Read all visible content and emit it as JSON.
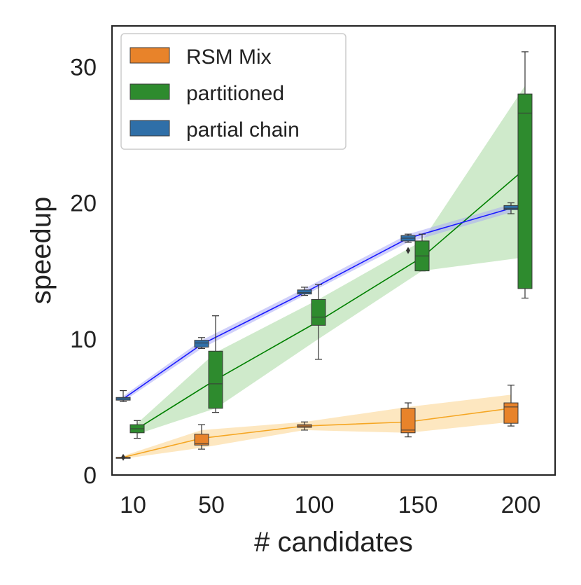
{
  "chart_data": {
    "type": "box",
    "title": "",
    "xlabel": "# candidates",
    "ylabel": "speedup",
    "categories": [
      "10",
      "50",
      "100",
      "150",
      "200"
    ],
    "ylim": [
      0,
      33
    ],
    "yticks": [
      0,
      10,
      20,
      30
    ],
    "legend": {
      "placement": "top-left"
    },
    "series": [
      {
        "name": "RSM Mix",
        "color": "#e8832a",
        "line_color": "#f5a623",
        "band_color": "#fbd38d",
        "box_order": 0,
        "means": [
          1.3,
          2.7,
          3.6,
          3.9,
          4.9
        ],
        "band_low": [
          1.2,
          2.0,
          3.3,
          3.1,
          3.9
        ],
        "band_high": [
          1.4,
          3.3,
          3.9,
          5.0,
          5.9
        ],
        "boxes": [
          {
            "whisker_low": 1.3,
            "q1": 1.3,
            "median": 1.3,
            "q3": 1.3,
            "whisker_high": 1.3,
            "outliers": [
              1.3
            ]
          },
          {
            "whisker_low": 1.9,
            "q1": 2.2,
            "median": 2.3,
            "q3": 3.0,
            "whisker_high": 3.7,
            "outliers": []
          },
          {
            "whisker_low": 3.3,
            "q1": 3.5,
            "median": 3.6,
            "q3": 3.7,
            "whisker_high": 3.9,
            "outliers": []
          },
          {
            "whisker_low": 2.8,
            "q1": 3.1,
            "median": 3.3,
            "q3": 4.9,
            "whisker_high": 5.3,
            "outliers": []
          },
          {
            "whisker_low": 3.6,
            "q1": 3.8,
            "median": 5.0,
            "q3": 5.3,
            "whisker_high": 6.6,
            "outliers": []
          }
        ]
      },
      {
        "name": "partitioned",
        "color": "#2e8b2e",
        "line_color": "#008000",
        "band_color": "#a8d8a0",
        "box_order": 1,
        "means": [
          3.4,
          7.0,
          11.3,
          16.0,
          22.5
        ],
        "band_low": [
          3.0,
          4.9,
          10.0,
          15.0,
          16.0
        ],
        "band_high": [
          3.8,
          9.0,
          12.9,
          17.2,
          28.6
        ],
        "boxes": [
          {
            "whisker_low": 2.7,
            "q1": 3.1,
            "median": 3.4,
            "q3": 3.7,
            "whisker_high": 4.0,
            "outliers": []
          },
          {
            "whisker_low": 4.6,
            "q1": 4.9,
            "median": 6.7,
            "q3": 9.1,
            "whisker_high": 11.7,
            "outliers": []
          },
          {
            "whisker_low": 8.5,
            "q1": 11.0,
            "median": 11.6,
            "q3": 12.9,
            "whisker_high": 14.0,
            "outliers": []
          },
          {
            "whisker_low": 15.0,
            "q1": 15.0,
            "median": 16.1,
            "q3": 17.2,
            "whisker_high": 17.7,
            "outliers": []
          },
          {
            "whisker_low": 13.0,
            "q1": 13.7,
            "median": 26.6,
            "q3": 28.0,
            "whisker_high": 31.1,
            "outliers": []
          }
        ]
      },
      {
        "name": "partial chain",
        "color": "#2f6fa8",
        "line_color": "#1a1aff",
        "band_color": "#a9a9f5",
        "box_order": 2,
        "means": [
          5.6,
          9.6,
          13.4,
          17.4,
          19.6
        ],
        "band_low": [
          5.4,
          9.3,
          13.2,
          17.1,
          19.3
        ],
        "band_high": [
          5.8,
          9.9,
          13.7,
          17.7,
          19.9
        ],
        "boxes": [
          {
            "whisker_low": 5.4,
            "q1": 5.5,
            "median": 5.6,
            "q3": 5.7,
            "whisker_high": 6.2,
            "outliers": []
          },
          {
            "whisker_low": 9.3,
            "q1": 9.4,
            "median": 9.7,
            "q3": 9.9,
            "whisker_high": 10.1,
            "outliers": []
          },
          {
            "whisker_low": 13.2,
            "q1": 13.3,
            "median": 13.4,
            "q3": 13.6,
            "whisker_high": 13.8,
            "outliers": []
          },
          {
            "whisker_low": 17.1,
            "q1": 17.2,
            "median": 17.4,
            "q3": 17.6,
            "whisker_high": 17.7,
            "outliers": [
              16.5
            ]
          },
          {
            "whisker_low": 19.2,
            "q1": 19.5,
            "median": 19.6,
            "q3": 19.8,
            "whisker_high": 20.0,
            "outliers": []
          }
        ]
      }
    ]
  }
}
